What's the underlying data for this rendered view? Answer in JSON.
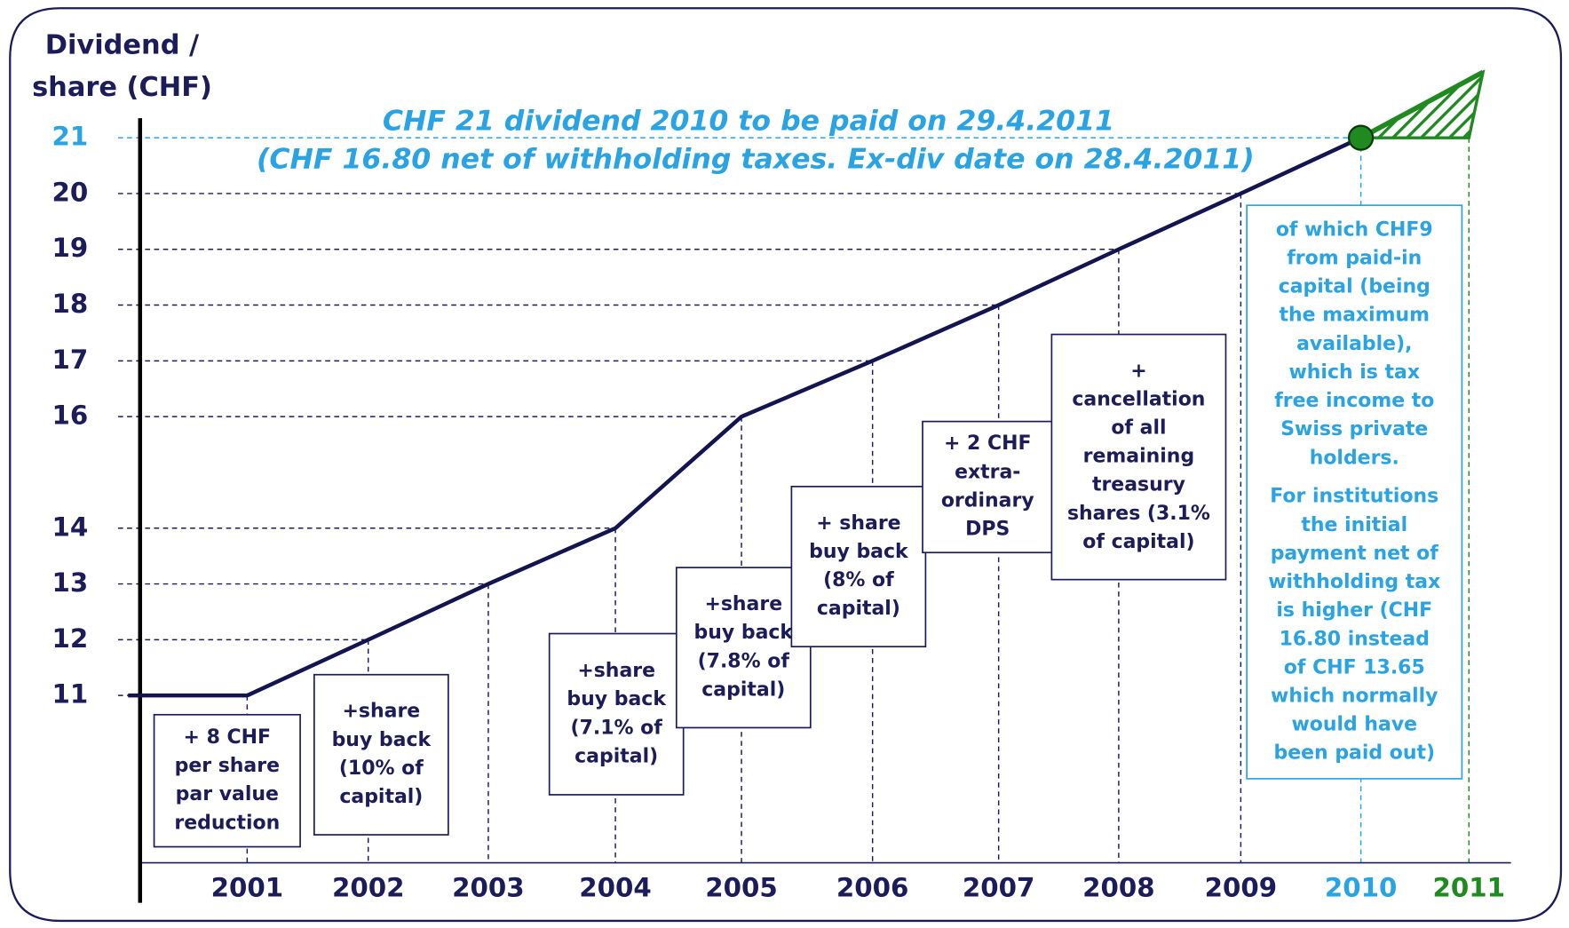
{
  "chart_data": {
    "type": "line",
    "y_label": [
      "Dividend /",
      "share (CHF)"
    ],
    "note": [
      "CHF 21 dividend 2010 to be paid on 29.4.2011",
      "(CHF 16.80 net of withholding taxes. Ex-div date on 28.4.2011)"
    ],
    "note_color": "#29a3e3",
    "categories": [
      "2001",
      "2002",
      "2003",
      "2004",
      "2005",
      "2006",
      "2007",
      "2008",
      "2009",
      "2010",
      "2011"
    ],
    "category_colors": [
      "#1c1c5a",
      "#1c1c5a",
      "#1c1c5a",
      "#1c1c5a",
      "#1c1c5a",
      "#1c1c5a",
      "#1c1c5a",
      "#1c1c5a",
      "#1c1c5a",
      "#29a3e3",
      "#1f8a1f"
    ],
    "series": [
      {
        "color": "#141450",
        "values": [
          11,
          12,
          13,
          14,
          16,
          17,
          18,
          19,
          20,
          21,
          null
        ]
      }
    ],
    "ylim": [
      8,
      21.35
    ],
    "yticks": [
      11,
      12,
      13,
      14,
      16,
      17,
      18,
      19,
      20,
      21
    ],
    "ytick_colors": [
      "#1c1c5a",
      "#1c1c5a",
      "#1c1c5a",
      "#1c1c5a",
      "#1c1c5a",
      "#1c1c5a",
      "#1c1c5a",
      "#1c1c5a",
      "#1c1c5a",
      "#29a3e3"
    ],
    "grid": true,
    "annotations": [
      {
        "paragraphs": [
          [
            "+ 8 CHF",
            "per share",
            "par value",
            "reduction"
          ]
        ]
      },
      {
        "paragraphs": [
          [
            "+share",
            "buy back",
            "(10% of",
            "capital)"
          ]
        ]
      },
      {
        "paragraphs": [
          [
            "+share",
            "buy back",
            "(7.1% of",
            "capital)"
          ]
        ]
      },
      {
        "paragraphs": [
          [
            "+share",
            "buy back",
            "(7.8% of",
            "capital)"
          ]
        ]
      },
      {
        "paragraphs": [
          [
            "+ share",
            "buy back",
            "(8%  of",
            "capital)"
          ]
        ]
      },
      {
        "paragraphs": [
          [
            "+ 2 CHF",
            "extra-",
            "ordinary",
            "DPS"
          ]
        ]
      },
      {
        "paragraphs": [
          [
            "+",
            "cancellation",
            "of all",
            "remaining",
            "treasury",
            "shares (3.1%",
            "of capital)"
          ]
        ]
      },
      {
        "paragraphs": [
          [
            "of which CHF9",
            "from paid-in",
            "capital (being",
            "the maximum",
            "available),",
            "which is tax",
            "free income to",
            "Swiss private",
            "holders."
          ],
          [
            "For institutions",
            "the initial",
            "payment net of",
            "withholding tax",
            "is higher (CHF",
            "16.80 instead",
            "of CHF 13.65",
            "which normally",
            "would have",
            "been paid out)"
          ]
        ],
        "color": "#29a3e3"
      }
    ]
  }
}
